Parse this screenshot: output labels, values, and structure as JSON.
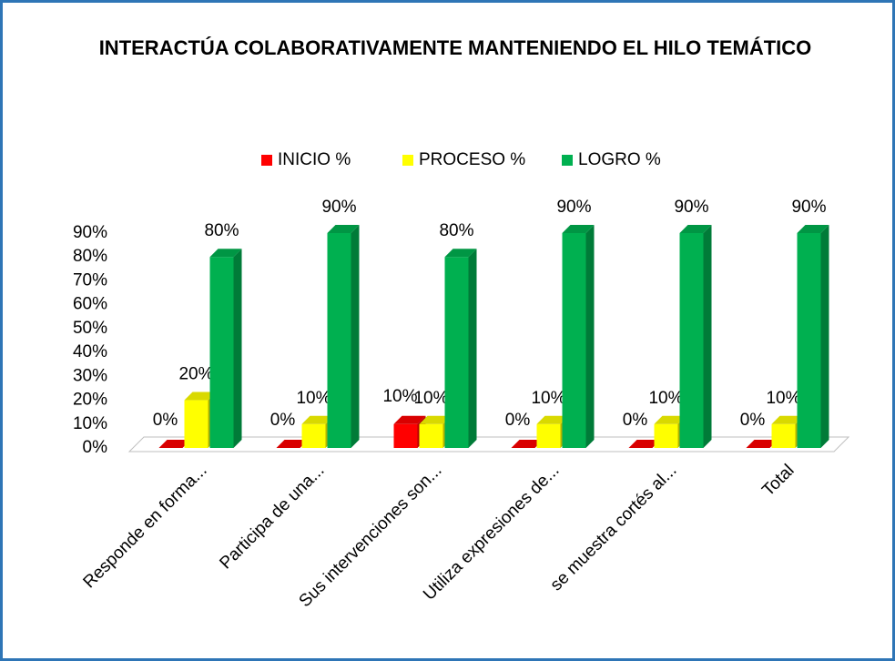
{
  "chart_data": {
    "type": "bar3d",
    "title": "INTERACTÚA COLABORATIVAMENTE MANTENIENDO EL HILO TEMÁTICO",
    "categories": [
      "Responde en forma...",
      "Participa de una...",
      "Sus intervenciones son...",
      "Utiliza expresiones de...",
      "se muestra cortés al...",
      "Total"
    ],
    "series": [
      {
        "name": "INICIO %",
        "color": "#ff0000",
        "values": [
          0,
          0,
          10,
          0,
          0,
          0
        ],
        "value_labels": [
          "0%",
          "0%",
          "10%",
          "0%",
          "0%",
          "0%"
        ]
      },
      {
        "name": "PROCESO %",
        "color": "#ffff00",
        "values": [
          20,
          10,
          10,
          10,
          10,
          10
        ],
        "value_labels": [
          "20%",
          "10%",
          "10%",
          "10%",
          "10%",
          "10%"
        ]
      },
      {
        "name": "LOGRO %",
        "color": "#00b050",
        "values": [
          80,
          90,
          80,
          90,
          90,
          90
        ],
        "value_labels": [
          "80%",
          "90%",
          "80%",
          "90%",
          "90%",
          "90%"
        ]
      }
    ],
    "ylim": [
      0,
      90
    ],
    "yticks": [
      {
        "value": 0,
        "label": "0%"
      },
      {
        "value": 10,
        "label": "10%"
      },
      {
        "value": 20,
        "label": "20%"
      },
      {
        "value": 30,
        "label": "30%"
      },
      {
        "value": 40,
        "label": "40%"
      },
      {
        "value": 50,
        "label": "50%"
      },
      {
        "value": 60,
        "label": "60%"
      },
      {
        "value": 70,
        "label": "70%"
      },
      {
        "value": 80,
        "label": "80%"
      },
      {
        "value": 90,
        "label": "90%"
      }
    ],
    "legend": "top"
  }
}
